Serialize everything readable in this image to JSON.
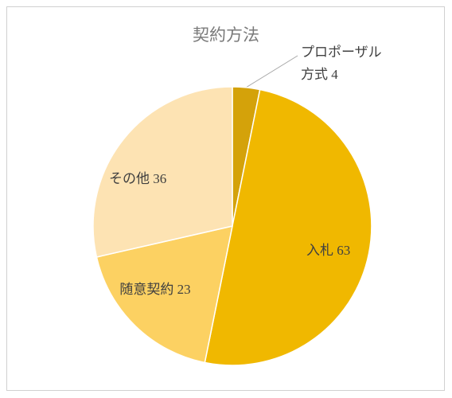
{
  "chart_data": {
    "type": "pie",
    "title": "契約方法",
    "categories": [
      "プロポーザル方式",
      "入札",
      "随意契約",
      "その他"
    ],
    "values": [
      4,
      63,
      23,
      36
    ],
    "colors": [
      "#d4a20a",
      "#f0b800",
      "#fcd162",
      "#fde3b3"
    ]
  }
}
